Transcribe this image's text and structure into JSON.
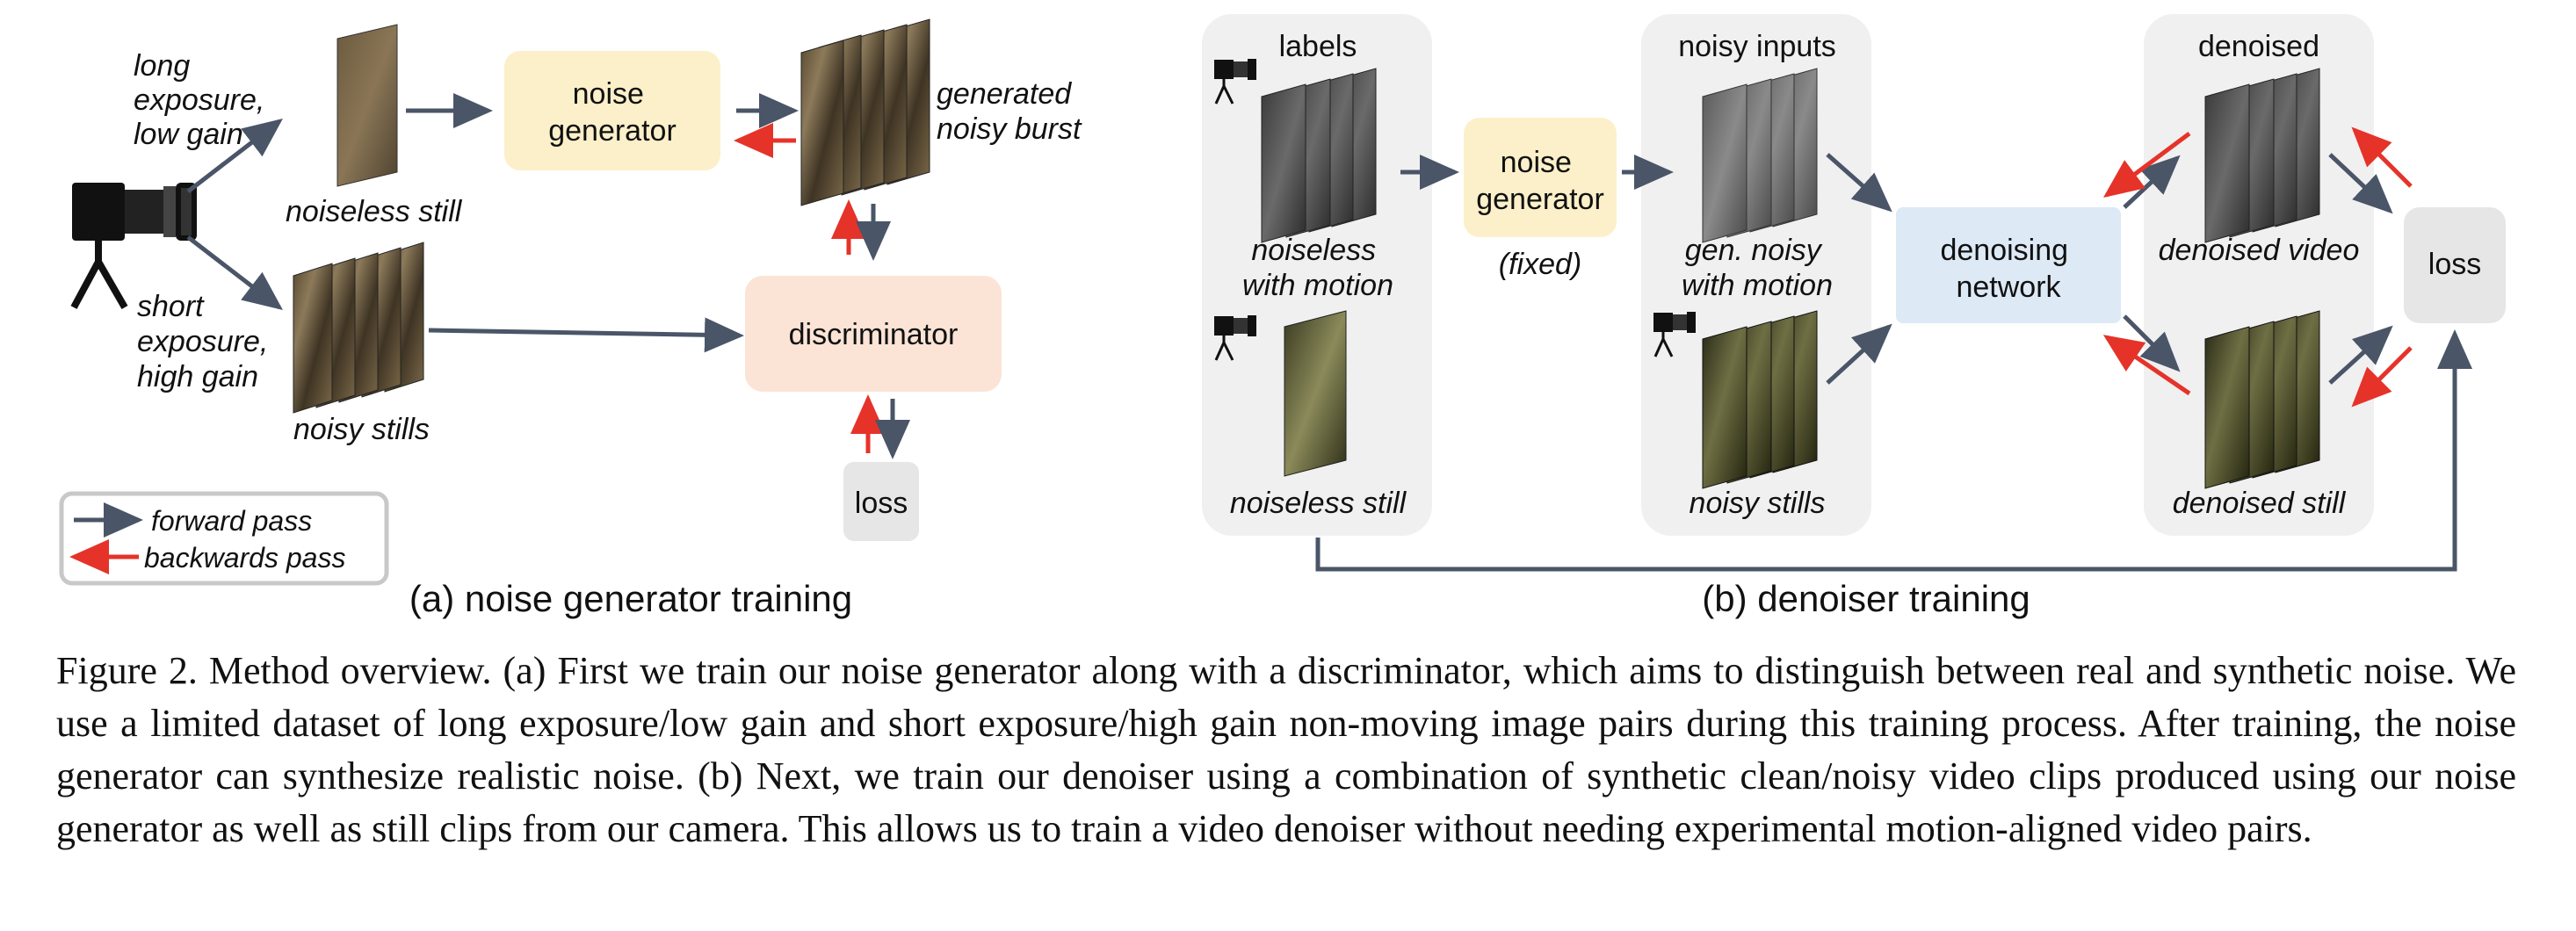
{
  "panel_a": {
    "long_exposure_low_gain": [
      "long",
      "exposure,",
      "low gain"
    ],
    "short_exposure_high_gain": [
      "short",
      "exposure,",
      "high gain"
    ],
    "noiseless_still": "noiseless still",
    "noisy_stills": "noisy stills",
    "noise_generator": [
      "noise",
      "generator"
    ],
    "generated_noisy_burst": [
      "generated",
      "noisy burst"
    ],
    "discriminator": "discriminator",
    "loss": "loss",
    "legend": {
      "forward": "forward pass",
      "backward": "backwards pass"
    },
    "title": "(a) noise generator training"
  },
  "panel_b": {
    "labels_header": "labels",
    "noiseless_with_motion": [
      "noiseless",
      "with motion"
    ],
    "noiseless_still": "noiseless still",
    "noise_generator": [
      "noise",
      "generator"
    ],
    "fixed": "(fixed)",
    "noisy_inputs_header": "noisy inputs",
    "gen_noisy_with_motion": [
      "gen. noisy",
      "with motion"
    ],
    "noisy_stills": "noisy stills",
    "denoising_network": [
      "denoising",
      "network"
    ],
    "denoised_header": "denoised",
    "denoised_video": "denoised video",
    "denoised_still": "denoised still",
    "loss": "loss",
    "title": "(b) denoiser training"
  },
  "caption": "Figure 2. Method overview. (a) First we train our noise generator along with a discriminator, which aims to distinguish between real and synthetic noise. We use a limited dataset of long exposure/low gain and short exposure/high gain non-moving image pairs during this training process. After training, the noise generator can synthesize realistic noise. (b) Next, we train our denoiser using a combination of synthetic clean/noisy video clips produced using our noise generator as well as still clips from our camera. This allows us to train a video denoiser without needing experimental motion-aligned video pairs.",
  "colors": {
    "forward_arrow": "#4a5568",
    "backward_arrow": "#e5332a",
    "noise_generator_box": "#fbf0c9",
    "discriminator_box": "#fbe4d6",
    "denoising_network_box": "#dde9f5",
    "loss_box": "#e6e6e6",
    "column_panel": "#f0f0f0"
  },
  "icons": [
    "camera-icon"
  ]
}
